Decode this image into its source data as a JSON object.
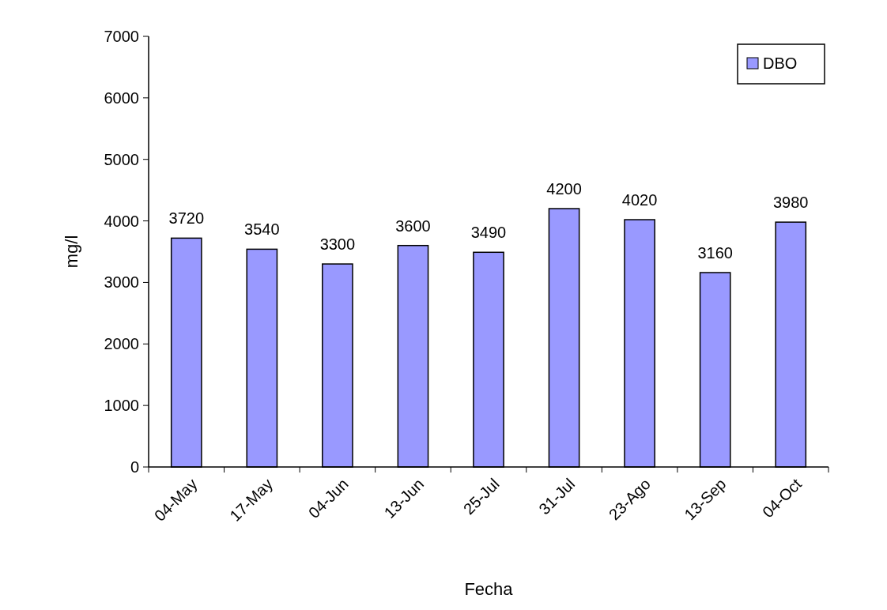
{
  "chart_data": {
    "type": "bar",
    "xlabel": "Fecha",
    "ylabel": "mg/l",
    "categories": [
      "04-May",
      "17-May",
      "04-Jun",
      "13-Jun",
      "25-Jul",
      "31-Jul",
      "23-Ago",
      "13-Sep",
      "04-Oct"
    ],
    "series": [
      {
        "name": "DBO",
        "color": "#9999ff",
        "values": [
          3720,
          3540,
          3300,
          3600,
          3490,
          4200,
          4020,
          3160,
          3980
        ]
      }
    ],
    "ylim": [
      0,
      7000
    ],
    "yticks": [
      0,
      1000,
      2000,
      3000,
      4000,
      5000,
      6000,
      7000
    ],
    "data_labels": true,
    "legend": "top right"
  }
}
